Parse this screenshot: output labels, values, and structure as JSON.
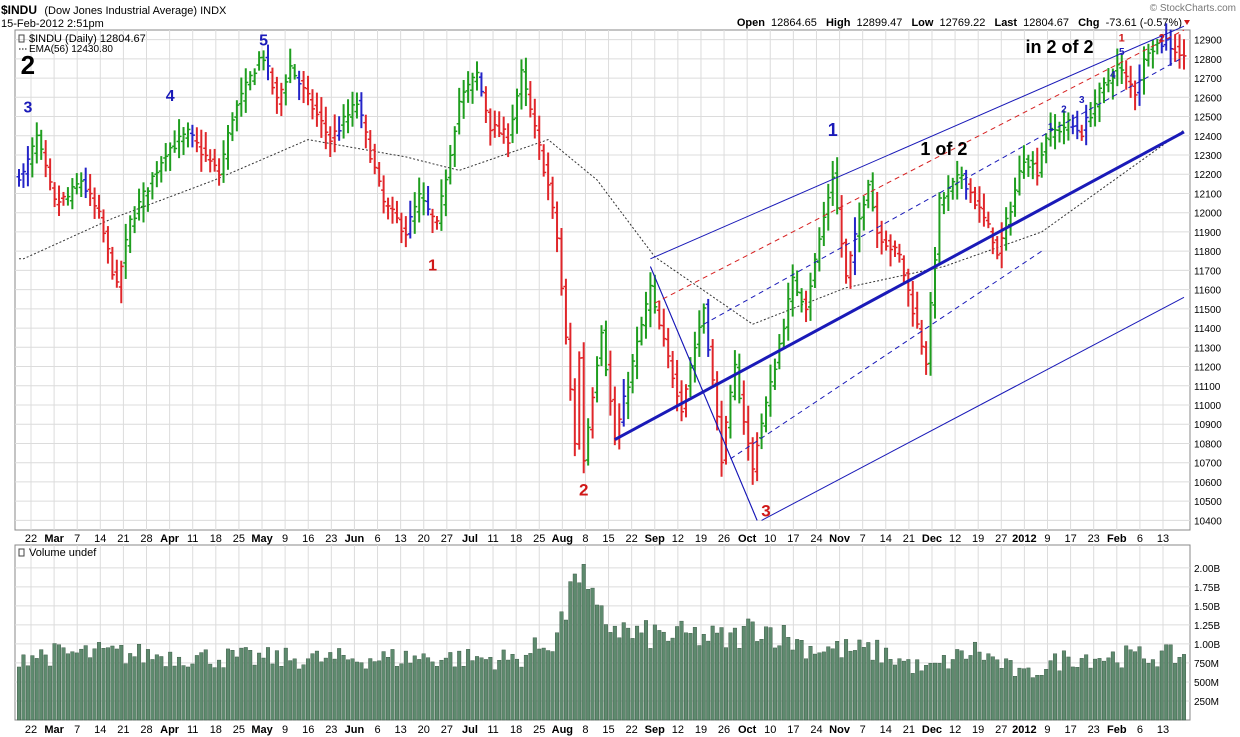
{
  "header": {
    "symbol_line": "$INDU (Dow Jones Industrial Average) INDX",
    "symbol": "$INDU",
    "name": "(Dow Jones Industrial Average) INDX",
    "date_time": "15-Feb-2012 2:51pm",
    "brand": "© StockCharts.com",
    "quote": {
      "open_label": "Open",
      "open": "12864.65",
      "high_label": "High",
      "high": "12899.47",
      "low_label": "Low",
      "low": "12769.22",
      "last_label": "Last",
      "last": "12804.67",
      "chg_label": "Chg",
      "chg": "-73.61 (-0.57%)"
    }
  },
  "legend": {
    "price_series": "$INDU (Daily) 12804.67",
    "ema_series": "EMA(56) 12430.80"
  },
  "colors": {
    "up_bar": "#1f9e1f",
    "down_bar": "#e0262a",
    "neutral_bar": "#2424c8",
    "ema": "#333333",
    "pitchfork": "#1a1ac8",
    "median_red": "#d62020",
    "volume_fill": "#5e8a6e",
    "grid": "#dcdcdc",
    "wave_blue": "#1a1ab8",
    "wave_red": "#d01818"
  },
  "chart_data": [
    {
      "type": "ohlc",
      "title": "$INDU (Dow Jones Industrial Average) INDX",
      "ylim": [
        10350,
        12950
      ],
      "y_ticks": [
        "12900",
        "12800",
        "12700",
        "12600",
        "12500",
        "12400",
        "12300",
        "12200",
        "12100",
        "12000",
        "11900",
        "11800",
        "11700",
        "11600",
        "11500",
        "11400",
        "11300",
        "11200",
        "11100",
        "11000",
        "10900",
        "10800",
        "10700",
        "10600",
        "10500",
        "10400"
      ],
      "x_tick_labels": [
        "22",
        "Mar",
        "7",
        "14",
        "21",
        "28",
        "Apr",
        "11",
        "18",
        "25",
        "May",
        "9",
        "16",
        "23",
        "Jun",
        "6",
        "13",
        "20",
        "27",
        "Jul",
        "11",
        "18",
        "25",
        "Aug",
        "8",
        "15",
        "22",
        "Sep",
        "12",
        "19",
        "26",
        "Oct",
        "10",
        "17",
        "24",
        "Nov",
        "7",
        "14",
        "21",
        "Dec",
        "12",
        "19",
        "27",
        "2012",
        "9",
        "17",
        "23",
        "Feb",
        "6",
        "13"
      ],
      "anchors": [
        {
          "date": "2011-02-15",
          "close": 12200
        },
        {
          "date": "2011-02-18",
          "close": 12390
        },
        {
          "date": "2011-02-24",
          "close": 12050
        },
        {
          "date": "2011-03-01",
          "close": 12080
        },
        {
          "date": "2011-03-04",
          "close": 12170
        },
        {
          "date": "2011-03-10",
          "close": 11980
        },
        {
          "date": "2011-03-16",
          "close": 11610
        },
        {
          "date": "2011-03-21",
          "close": 11950
        },
        {
          "date": "2011-03-31",
          "close": 12320
        },
        {
          "date": "2011-04-07",
          "close": 12410
        },
        {
          "date": "2011-04-18",
          "close": 12200
        },
        {
          "date": "2011-04-21",
          "close": 12500
        },
        {
          "date": "2011-04-29",
          "close": 12800
        },
        {
          "date": "2011-05-02",
          "close": 12810
        },
        {
          "date": "2011-05-05",
          "close": 12580
        },
        {
          "date": "2011-05-10",
          "close": 12760
        },
        {
          "date": "2011-05-23",
          "close": 12380
        },
        {
          "date": "2011-05-31",
          "close": 12570
        },
        {
          "date": "2011-06-08",
          "close": 12050
        },
        {
          "date": "2011-06-15",
          "close": 11900
        },
        {
          "date": "2011-06-20",
          "close": 12080
        },
        {
          "date": "2011-06-24",
          "close": 11930
        },
        {
          "date": "2011-07-01",
          "close": 12580
        },
        {
          "date": "2011-07-07",
          "close": 12720
        },
        {
          "date": "2011-07-12",
          "close": 12450
        },
        {
          "date": "2011-07-18",
          "close": 12390
        },
        {
          "date": "2011-07-21",
          "close": 12720
        },
        {
          "date": "2011-07-29",
          "close": 12140
        },
        {
          "date": "2011-08-02",
          "close": 11870
        },
        {
          "date": "2011-08-08",
          "close": 10810
        },
        {
          "date": "2011-08-09",
          "close": 11240
        },
        {
          "date": "2011-08-10",
          "close": 10720
        },
        {
          "date": "2011-08-16",
          "close": 11400
        },
        {
          "date": "2011-08-19",
          "close": 10820
        },
        {
          "date": "2011-08-31",
          "close": 11610
        },
        {
          "date": "2011-09-01",
          "close": 11490
        },
        {
          "date": "2011-09-09",
          "close": 10990
        },
        {
          "date": "2011-09-16",
          "close": 11510
        },
        {
          "date": "2011-09-22",
          "close": 10730
        },
        {
          "date": "2011-09-27",
          "close": 11190
        },
        {
          "date": "2011-10-03",
          "close": 10660
        },
        {
          "date": "2011-10-04",
          "close": 10810
        },
        {
          "date": "2011-10-07",
          "close": 11100
        },
        {
          "date": "2011-10-14",
          "close": 11640
        },
        {
          "date": "2011-10-19",
          "close": 11520
        },
        {
          "date": "2011-10-27",
          "close": 12200
        },
        {
          "date": "2011-11-01",
          "close": 11660
        },
        {
          "date": "2011-11-08",
          "close": 12170
        },
        {
          "date": "2011-11-10",
          "close": 11900
        },
        {
          "date": "2011-11-17",
          "close": 11770
        },
        {
          "date": "2011-11-25",
          "close": 11230
        },
        {
          "date": "2011-11-30",
          "close": 12050
        },
        {
          "date": "2011-12-07",
          "close": 12200
        },
        {
          "date": "2011-12-16",
          "close": 11870
        },
        {
          "date": "2011-12-19",
          "close": 11770
        },
        {
          "date": "2011-12-27",
          "close": 12290
        },
        {
          "date": "2011-12-30",
          "close": 12220
        },
        {
          "date": "2012-01-03",
          "close": 12400
        },
        {
          "date": "2012-01-10",
          "close": 12460
        },
        {
          "date": "2012-01-13",
          "close": 12420
        },
        {
          "date": "2012-01-19",
          "close": 12620
        },
        {
          "date": "2012-01-25",
          "close": 12760
        },
        {
          "date": "2012-01-31",
          "close": 12630
        },
        {
          "date": "2012-02-03",
          "close": 12860
        },
        {
          "date": "2012-02-09",
          "close": 12890
        },
        {
          "date": "2012-02-15",
          "close": 12805
        }
      ],
      "ema_label": "EMA(56) 12430.80",
      "ema_anchors": [
        {
          "date": "2011-02-15",
          "value": 11760
        },
        {
          "date": "2011-03-15",
          "value": 11970
        },
        {
          "date": "2011-04-15",
          "value": 12170
        },
        {
          "date": "2011-05-15",
          "value": 12380
        },
        {
          "date": "2011-06-15",
          "value": 12290
        },
        {
          "date": "2011-07-01",
          "value": 12220
        },
        {
          "date": "2011-07-29",
          "value": 12380
        },
        {
          "date": "2011-08-15",
          "value": 12170
        },
        {
          "date": "2011-09-01",
          "value": 11770
        },
        {
          "date": "2011-10-01",
          "value": 11420
        },
        {
          "date": "2011-11-01",
          "value": 11610
        },
        {
          "date": "2011-12-01",
          "value": 11720
        },
        {
          "date": "2012-01-01",
          "value": 11900
        },
        {
          "date": "2012-02-15",
          "value": 12430
        }
      ]
    },
    {
      "type": "bar",
      "title": "Volume undef",
      "ylim": [
        0,
        2300
      ],
      "y_tick_labels": [
        "2.00B",
        "1.75B",
        "1.50B",
        "1.25B",
        "1.00B",
        "750M",
        "500M",
        "250M"
      ],
      "y_tick_values": [
        2000,
        1750,
        1500,
        1250,
        1000,
        750,
        500,
        250
      ],
      "unit": "M",
      "anchors": [
        {
          "date": "2011-02-15",
          "value": 850
        },
        {
          "date": "2011-03-10",
          "value": 880
        },
        {
          "date": "2011-04-15",
          "value": 820
        },
        {
          "date": "2011-05-20",
          "value": 800
        },
        {
          "date": "2011-06-20",
          "value": 820
        },
        {
          "date": "2011-07-20",
          "value": 800
        },
        {
          "date": "2011-08-01",
          "value": 1050
        },
        {
          "date": "2011-08-05",
          "value": 1550
        },
        {
          "date": "2011-08-08",
          "value": 2150
        },
        {
          "date": "2011-08-10",
          "value": 1800
        },
        {
          "date": "2011-08-15",
          "value": 1350
        },
        {
          "date": "2011-08-25",
          "value": 1120
        },
        {
          "date": "2011-09-15",
          "value": 1100
        },
        {
          "date": "2011-09-25",
          "value": 1050
        },
        {
          "date": "2011-10-04",
          "value": 1250
        },
        {
          "date": "2011-10-20",
          "value": 950
        },
        {
          "date": "2011-11-10",
          "value": 900
        },
        {
          "date": "2011-11-25",
          "value": 650
        },
        {
          "date": "2011-12-10",
          "value": 920
        },
        {
          "date": "2011-12-27",
          "value": 580
        },
        {
          "date": "2012-01-10",
          "value": 830
        },
        {
          "date": "2012-02-15",
          "value": 840
        }
      ]
    }
  ],
  "annotations": [
    {
      "text": "2",
      "color": "#000000",
      "date": "2011-02-16",
      "price": 12720,
      "size": 26
    },
    {
      "text": "3",
      "color": "#1a1ab8",
      "date": "2011-02-16",
      "price": 12520,
      "size": 16
    },
    {
      "text": "4",
      "color": "#1a1ab8",
      "date": "2011-04-01",
      "price": 12580,
      "size": 16
    },
    {
      "text": "5",
      "color": "#1a1ab8",
      "date": "2011-05-02",
      "price": 12870,
      "size": 16
    },
    {
      "text": "1",
      "color": "#d01818",
      "date": "2011-06-23",
      "price": 11700,
      "size": 16
    },
    {
      "text": "2",
      "color": "#d01818",
      "date": "2011-08-10",
      "price": 10530,
      "size": 17
    },
    {
      "text": "3",
      "color": "#d01818",
      "date": "2011-10-06",
      "price": 10420,
      "size": 17
    },
    {
      "text": "1",
      "color": "#1a1ab8",
      "date": "2011-10-27",
      "price": 12400,
      "size": 18
    },
    {
      "text": "1 of 2",
      "color": "#000000",
      "date": "2011-12-01",
      "price": 12300,
      "size": 18
    },
    {
      "text": "in 2 of 2",
      "color": "#000000",
      "date": "2012-01-06",
      "price": 12830,
      "size": 18
    },
    {
      "text": "1",
      "color": "#1a1ab8",
      "date": "2012-01-04",
      "price": 12430,
      "size": 10
    },
    {
      "text": "2",
      "color": "#1a1ab8",
      "date": "2012-01-09",
      "price": 12520,
      "size": 10
    },
    {
      "text": "3",
      "color": "#1a1ab8",
      "date": "2012-01-13",
      "price": 12570,
      "size": 10
    },
    {
      "text": "4",
      "color": "#1a1ab8",
      "date": "2012-01-24",
      "price": 12700,
      "size": 10
    },
    {
      "text": "5",
      "color": "#1a1ab8",
      "date": "2012-01-26",
      "price": 12820,
      "size": 10
    },
    {
      "text": "1",
      "color": "#d01818",
      "date": "2012-01-26",
      "price": 12890,
      "size": 11
    },
    {
      "text": "2",
      "color": "#d01818",
      "date": "2012-02-08",
      "price": 12890,
      "size": 11
    }
  ],
  "trend_lines": [
    {
      "name": "pitchfork-handle",
      "style": "solid",
      "color": "#1a1ab8",
      "width": 1,
      "from": {
        "date": "2011-08-31",
        "price": 11720
      },
      "to": {
        "date": "2011-10-04",
        "price": 10400
      }
    },
    {
      "name": "pitchfork-handle-lower",
      "style": "solid",
      "color": "#1a1ab8",
      "width": 1,
      "from": {
        "date": "2011-10-04",
        "price": 10400
      },
      "to": {
        "date": "2011-08-31",
        "price": 11720
      }
    },
    {
      "name": "pitchfork-upper-tine",
      "style": "solid",
      "color": "#1a1ab8",
      "width": 1,
      "from": {
        "date": "2011-08-31",
        "price": 11760
      },
      "to": {
        "date": "2012-02-16",
        "price": 12970
      }
    },
    {
      "name": "pitchfork-upper-warning",
      "style": "dashed",
      "color": "#d62020",
      "width": 1,
      "from": {
        "date": "2011-09-01",
        "price": 11530
      },
      "to": {
        "date": "2012-02-16",
        "price": 12950
      }
    },
    {
      "name": "pitchfork-inner-upper",
      "style": "dashed",
      "color": "#1a1ab8",
      "width": 1,
      "from": {
        "date": "2011-09-16",
        "price": 11420
      },
      "to": {
        "date": "2012-02-16",
        "price": 12810
      }
    },
    {
      "name": "pitchfork-median",
      "style": "solid",
      "color": "#1a1ab8",
      "width": 3,
      "from": {
        "date": "2011-08-19",
        "price": 10820
      },
      "to": {
        "date": "2012-02-16",
        "price": 12420
      }
    },
    {
      "name": "pitchfork-inner-lower",
      "style": "dashed",
      "color": "#1a1ab8",
      "width": 1,
      "from": {
        "date": "2011-09-26",
        "price": 10720
      },
      "to": {
        "date": "2012-01-02",
        "price": 11800
      }
    },
    {
      "name": "pitchfork-lower-tine",
      "style": "solid",
      "color": "#1a1ab8",
      "width": 1,
      "from": {
        "date": "2011-10-05",
        "price": 10400
      },
      "to": {
        "date": "2012-02-16",
        "price": 11560
      }
    }
  ]
}
